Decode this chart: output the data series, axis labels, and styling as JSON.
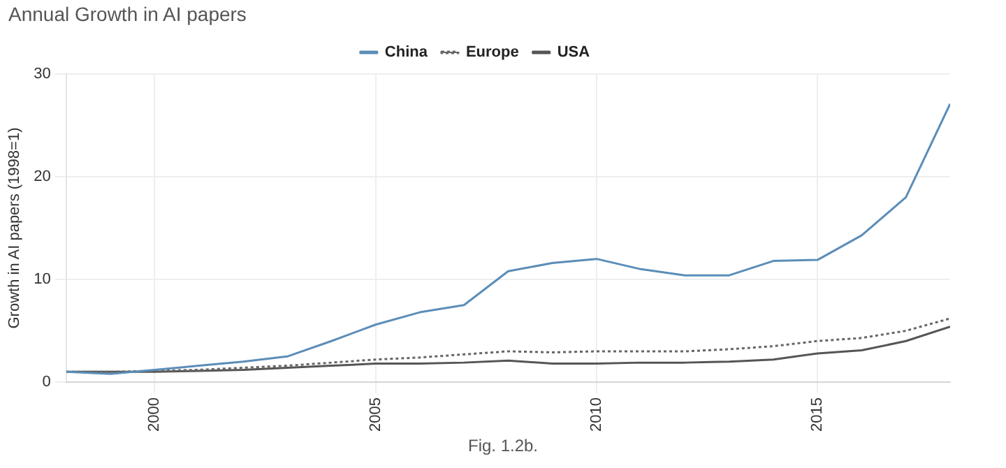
{
  "chart_data": {
    "type": "line",
    "title": "Annual Growth in AI papers",
    "ylabel": "Growth in AI papers (1998=1)",
    "x": [
      1998,
      1999,
      2000,
      2001,
      2002,
      2003,
      2004,
      2005,
      2006,
      2007,
      2008,
      2009,
      2010,
      2011,
      2012,
      2013,
      2014,
      2015,
      2016,
      2017,
      2018
    ],
    "xlim": [
      1998,
      2018
    ],
    "xticks": [
      2000,
      2005,
      2010,
      2015
    ],
    "ylim": [
      0,
      30
    ],
    "yticks": [
      0,
      10,
      20,
      30
    ],
    "grid": true,
    "legend": "top",
    "marker": "none",
    "series": [
      {
        "name": "China",
        "color": "#5b8db8",
        "line_style": "solid",
        "values": [
          1,
          0.8,
          1.2,
          1.6,
          2.0,
          2.5,
          4.0,
          5.6,
          6.8,
          7.5,
          10.8,
          11.6,
          12.0,
          11.0,
          10.4,
          10.4,
          11.8,
          11.9,
          14.3,
          18.0,
          27.1
        ]
      },
      {
        "name": "Europe",
        "color": "#666666",
        "line_style": "dotted",
        "values": [
          1,
          1,
          1.1,
          1.2,
          1.4,
          1.6,
          1.9,
          2.2,
          2.4,
          2.7,
          3.0,
          2.9,
          3.0,
          3.0,
          3.0,
          3.2,
          3.5,
          4.0,
          4.3,
          5.0,
          6.2
        ]
      },
      {
        "name": "USA",
        "color": "#555555",
        "line_style": "solid",
        "values": [
          1,
          1,
          1.0,
          1.1,
          1.2,
          1.4,
          1.6,
          1.8,
          1.8,
          1.9,
          2.1,
          1.8,
          1.8,
          1.9,
          1.9,
          2.0,
          2.2,
          2.8,
          3.1,
          4.0,
          5.4
        ]
      }
    ],
    "annotations": [
      "Fig. 1.2b."
    ]
  }
}
